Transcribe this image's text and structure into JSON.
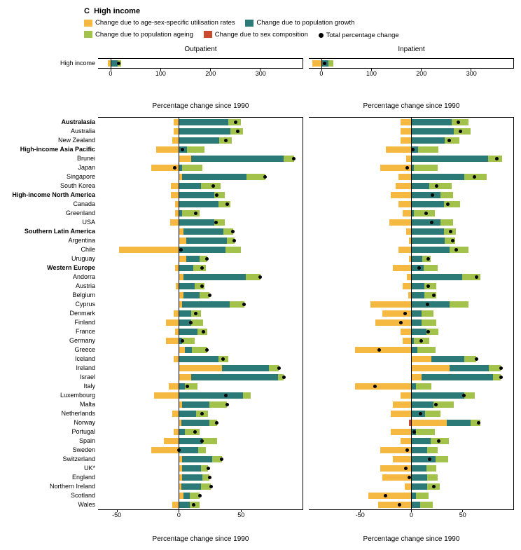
{
  "panel_label": "C",
  "panel_title": "High income",
  "legend": {
    "util": {
      "label": "Change due to age-sex-specific utilisation rates",
      "color": "#f5b942"
    },
    "growth": {
      "label": "Change due to population growth",
      "color": "#2b7a78"
    },
    "ageing": {
      "label": "Change due to population ageing",
      "color": "#a3c24b"
    },
    "sex": {
      "label": "Change due to sex composition",
      "color": "#c94a2f"
    },
    "total": {
      "label": "Total percentage change"
    }
  },
  "columns": {
    "outpatient": {
      "title": "Outpatient"
    },
    "inpatient": {
      "title": "Inpatient"
    }
  },
  "axis_title_main": "Percentage change since 1990",
  "axis_title_summary": "Percentage change since 1990",
  "summary_axis": {
    "min": -25,
    "max": 385,
    "ticks": [
      0,
      100,
      200,
      300
    ]
  },
  "main_axis_out": {
    "min": -65,
    "max": 100,
    "ticks": [
      -50,
      0,
      50
    ]
  },
  "main_axis_in": {
    "min": -100,
    "max": 100,
    "ticks": [
      -50,
      0,
      50
    ]
  },
  "summary_row": {
    "label": "High income",
    "out": {
      "util": -5,
      "growth": 14,
      "ageing": 7,
      "sex": 0,
      "total": 16
    },
    "in": {
      "util": -18,
      "growth": 14,
      "ageing": 10,
      "sex": 0,
      "total": 6
    }
  },
  "rows": [
    {
      "label": "Australasia",
      "bold": true,
      "out": {
        "util": -4,
        "growth": 40,
        "ageing": 10,
        "sex": 0,
        "total": 46
      },
      "in": {
        "util": -10,
        "growth": 40,
        "ageing": 16,
        "sex": 0,
        "total": 46
      }
    },
    {
      "label": "Australia",
      "out": {
        "util": -4,
        "growth": 42,
        "ageing": 10,
        "sex": 0,
        "total": 48
      },
      "in": {
        "util": -10,
        "growth": 42,
        "ageing": 16,
        "sex": 0,
        "total": 48
      }
    },
    {
      "label": "New Zealand",
      "out": {
        "util": -5,
        "growth": 33,
        "ageing": 10,
        "sex": 0,
        "total": 38
      },
      "in": {
        "util": -10,
        "growth": 33,
        "ageing": 14,
        "sex": 0,
        "total": 37
      }
    },
    {
      "label": "High-income Asia Pacific",
      "bold": true,
      "out": {
        "util": -18,
        "growth": 7,
        "ageing": 14,
        "sex": 0,
        "total": 3
      },
      "in": {
        "util": -25,
        "growth": 7,
        "ageing": 20,
        "sex": 0,
        "total": 2
      }
    },
    {
      "label": "Brunei",
      "out": {
        "util": 10,
        "growth": 75,
        "ageing": 8,
        "sex": 0,
        "total": 93
      },
      "in": {
        "util": -5,
        "growth": 75,
        "ageing": 14,
        "sex": 0,
        "total": 84
      }
    },
    {
      "label": "Japan",
      "out": {
        "util": -22,
        "growth": 3,
        "ageing": 16,
        "sex": 0,
        "total": -3
      },
      "in": {
        "util": -30,
        "growth": 3,
        "ageing": 23,
        "sex": 0,
        "total": -4
      }
    },
    {
      "label": "Singapore",
      "out": {
        "util": 3,
        "growth": 52,
        "ageing": 15,
        "sex": 0,
        "total": 70
      },
      "in": {
        "util": -12,
        "growth": 52,
        "ageing": 22,
        "sex": 0,
        "total": 62
      }
    },
    {
      "label": "South Korea",
      "out": {
        "util": -6,
        "growth": 18,
        "ageing": 16,
        "sex": 0,
        "total": 28
      },
      "in": {
        "util": -15,
        "growth": 18,
        "ageing": 22,
        "sex": 0,
        "total": 25
      }
    },
    {
      "label": "High-income North America",
      "bold": true,
      "out": {
        "util": -6,
        "growth": 29,
        "ageing": 8,
        "sex": 0,
        "total": 31
      },
      "in": {
        "util": -20,
        "growth": 29,
        "ageing": 12,
        "sex": 0,
        "total": 21
      }
    },
    {
      "label": "Canada",
      "out": {
        "util": -3,
        "growth": 32,
        "ageing": 10,
        "sex": 0,
        "total": 39
      },
      "in": {
        "util": -12,
        "growth": 32,
        "ageing": 16,
        "sex": 0,
        "total": 36
      }
    },
    {
      "label": "Greenland",
      "out": {
        "util": -3,
        "growth": 3,
        "ageing": 14,
        "sex": 0,
        "total": 14
      },
      "in": {
        "util": -8,
        "growth": 3,
        "ageing": 20,
        "sex": 0,
        "total": 15
      }
    },
    {
      "label": "USA",
      "out": {
        "util": -7,
        "growth": 29,
        "ageing": 8,
        "sex": 0,
        "total": 30
      },
      "in": {
        "util": -21,
        "growth": 29,
        "ageing": 12,
        "sex": 0,
        "total": 20
      }
    },
    {
      "label": "Southern Latin America",
      "bold": true,
      "out": {
        "util": 4,
        "growth": 32,
        "ageing": 8,
        "sex": 0,
        "total": 44
      },
      "in": {
        "util": -5,
        "growth": 32,
        "ageing": 12,
        "sex": 0,
        "total": 39
      }
    },
    {
      "label": "Argentina",
      "out": {
        "util": 6,
        "growth": 33,
        "ageing": 6,
        "sex": 0,
        "total": 45
      },
      "in": {
        "util": -2,
        "growth": 33,
        "ageing": 10,
        "sex": 0,
        "total": 41
      }
    },
    {
      "label": "Chile",
      "out": {
        "util": -48,
        "growth": 38,
        "ageing": 12,
        "sex": 0,
        "total": 2
      },
      "in": {
        "util": -12,
        "growth": 38,
        "ageing": 18,
        "sex": 0,
        "total": 44
      }
    },
    {
      "label": "Uruguay",
      "out": {
        "util": 6,
        "growth": 11,
        "ageing": 6,
        "sex": 0,
        "total": 23
      },
      "in": {
        "util": -2,
        "growth": 11,
        "ageing": 8,
        "sex": 0,
        "total": 17
      }
    },
    {
      "label": "Western Europe",
      "bold": true,
      "out": {
        "util": -3,
        "growth": 12,
        "ageing": 10,
        "sex": 0,
        "total": 19
      },
      "in": {
        "util": -18,
        "growth": 12,
        "ageing": 14,
        "sex": 0,
        "total": 8
      }
    },
    {
      "label": "Andorra",
      "out": {
        "util": 4,
        "growth": 50,
        "ageing": 12,
        "sex": 0,
        "total": 66
      },
      "in": {
        "util": -4,
        "growth": 50,
        "ageing": 18,
        "sex": 0,
        "total": 64
      }
    },
    {
      "label": "Austria",
      "out": {
        "util": -2,
        "growth": 13,
        "ageing": 8,
        "sex": 0,
        "total": 19
      },
      "in": {
        "util": -8,
        "growth": 13,
        "ageing": 12,
        "sex": 0,
        "total": 17
      }
    },
    {
      "label": "Belgium",
      "out": {
        "util": 4,
        "growth": 13,
        "ageing": 8,
        "sex": 0,
        "total": 25
      },
      "in": {
        "util": -3,
        "growth": 13,
        "ageing": 12,
        "sex": 0,
        "total": 22
      }
    },
    {
      "label": "Cyprus",
      "out": {
        "util": 3,
        "growth": 38,
        "ageing": 12,
        "sex": 0,
        "total": 53
      },
      "in": {
        "util": -40,
        "growth": 38,
        "ageing": 18,
        "sex": 0,
        "total": 16
      }
    },
    {
      "label": "Denmark",
      "out": {
        "util": -4,
        "growth": 10,
        "ageing": 8,
        "sex": 0,
        "total": 14
      },
      "in": {
        "util": -28,
        "growth": 10,
        "ageing": 12,
        "sex": 0,
        "total": -6
      }
    },
    {
      "label": "Finland",
      "out": {
        "util": -10,
        "growth": 10,
        "ageing": 10,
        "sex": 0,
        "total": 10
      },
      "in": {
        "util": -35,
        "growth": 10,
        "ageing": 15,
        "sex": 0,
        "total": -10
      }
    },
    {
      "label": "France",
      "out": {
        "util": -3,
        "growth": 15,
        "ageing": 8,
        "sex": 0,
        "total": 20
      },
      "in": {
        "util": -10,
        "growth": 15,
        "ageing": 12,
        "sex": 0,
        "total": 17
      }
    },
    {
      "label": "Germany",
      "out": {
        "util": -10,
        "growth": 3,
        "ageing": 10,
        "sex": 0,
        "total": 3
      },
      "in": {
        "util": -8,
        "growth": 3,
        "ageing": 15,
        "sex": 0,
        "total": 10
      }
    },
    {
      "label": "Greece",
      "out": {
        "util": 5,
        "growth": 6,
        "ageing": 12,
        "sex": 0,
        "total": 23
      },
      "in": {
        "util": -55,
        "growth": 6,
        "ageing": 18,
        "sex": 0,
        "total": -31
      }
    },
    {
      "label": "Iceland",
      "out": {
        "util": -4,
        "growth": 32,
        "ageing": 8,
        "sex": 0,
        "total": 36
      },
      "in": {
        "util": 20,
        "growth": 32,
        "ageing": 12,
        "sex": 0,
        "total": 64
      }
    },
    {
      "label": "Ireland",
      "out": {
        "util": 35,
        "growth": 38,
        "ageing": 8,
        "sex": 0,
        "total": 81
      },
      "in": {
        "util": 38,
        "growth": 38,
        "ageing": 12,
        "sex": 0,
        "total": 88
      }
    },
    {
      "label": "Israel",
      "out": {
        "util": 10,
        "growth": 70,
        "ageing": 5,
        "sex": 0,
        "total": 85
      },
      "in": {
        "util": 10,
        "growth": 70,
        "ageing": 8,
        "sex": 0,
        "total": 88
      }
    },
    {
      "label": "Italy",
      "out": {
        "util": -8,
        "growth": 5,
        "ageing": 10,
        "sex": 0,
        "total": 7
      },
      "in": {
        "util": -55,
        "growth": 5,
        "ageing": 15,
        "sex": 0,
        "total": -35
      }
    },
    {
      "label": "Luxembourg",
      "out": {
        "util": -20,
        "growth": 52,
        "ageing": 6,
        "sex": 0,
        "total": 38
      },
      "in": {
        "util": -10,
        "growth": 52,
        "ageing": 10,
        "sex": 0,
        "total": 52
      }
    },
    {
      "label": "Malta",
      "out": {
        "util": 3,
        "growth": 22,
        "ageing": 14,
        "sex": 0,
        "total": 39
      },
      "in": {
        "util": -18,
        "growth": 22,
        "ageing": 20,
        "sex": 0,
        "total": 24
      }
    },
    {
      "label": "Netherlands",
      "out": {
        "util": -5,
        "growth": 14,
        "ageing": 10,
        "sex": 0,
        "total": 19
      },
      "in": {
        "util": -20,
        "growth": 14,
        "ageing": 15,
        "sex": 0,
        "total": 9
      }
    },
    {
      "label": "Norway",
      "out": {
        "util": 2,
        "growth": 23,
        "ageing": 6,
        "sex": 0,
        "total": 31
      },
      "in": {
        "util": 35,
        "growth": 23,
        "ageing": 10,
        "sex": -2,
        "total": 66
      }
    },
    {
      "label": "Portugal",
      "out": {
        "util": -4,
        "growth": 5,
        "ageing": 12,
        "sex": 0,
        "total": 13
      },
      "in": {
        "util": -20,
        "growth": 5,
        "ageing": 18,
        "sex": 0,
        "total": 3
      }
    },
    {
      "label": "Spain",
      "out": {
        "util": -12,
        "growth": 19,
        "ageing": 12,
        "sex": 0,
        "total": 19
      },
      "in": {
        "util": -10,
        "growth": 19,
        "ageing": 18,
        "sex": 0,
        "total": 27
      }
    },
    {
      "label": "Sweden",
      "out": {
        "util": -22,
        "growth": 16,
        "ageing": 6,
        "sex": 0,
        "total": 0
      },
      "in": {
        "util": -30,
        "growth": 16,
        "ageing": 10,
        "sex": 0,
        "total": -4
      }
    },
    {
      "label": "Switzerland",
      "out": {
        "util": 3,
        "growth": 24,
        "ageing": 8,
        "sex": 0,
        "total": 35
      },
      "in": {
        "util": -18,
        "growth": 24,
        "ageing": 12,
        "sex": 0,
        "total": 18
      }
    },
    {
      "label": "UK*",
      "out": {
        "util": 3,
        "growth": 15,
        "ageing": 6,
        "sex": 0,
        "total": 24
      },
      "in": {
        "util": -30,
        "growth": 15,
        "ageing": 10,
        "sex": 0,
        "total": -5
      }
    },
    {
      "label": "England",
      "out": {
        "util": 3,
        "growth": 16,
        "ageing": 6,
        "sex": 0,
        "total": 25
      },
      "in": {
        "util": -28,
        "growth": 16,
        "ageing": 10,
        "sex": 0,
        "total": -2
      }
    },
    {
      "label": "Northern Ireland",
      "out": {
        "util": 2,
        "growth": 16,
        "ageing": 8,
        "sex": 0,
        "total": 26
      },
      "in": {
        "util": -6,
        "growth": 16,
        "ageing": 12,
        "sex": 0,
        "total": 22
      }
    },
    {
      "label": "Scotland",
      "out": {
        "util": 4,
        "growth": 5,
        "ageing": 8,
        "sex": 0,
        "total": 17
      },
      "in": {
        "util": -42,
        "growth": 5,
        "ageing": 12,
        "sex": 0,
        "total": -25
      }
    },
    {
      "label": "Wales",
      "out": {
        "util": -5,
        "growth": 9,
        "ageing": 8,
        "sex": 0,
        "total": 12
      },
      "in": {
        "util": -32,
        "growth": 9,
        "ageing": 12,
        "sex": 0,
        "total": -11
      }
    }
  ]
}
